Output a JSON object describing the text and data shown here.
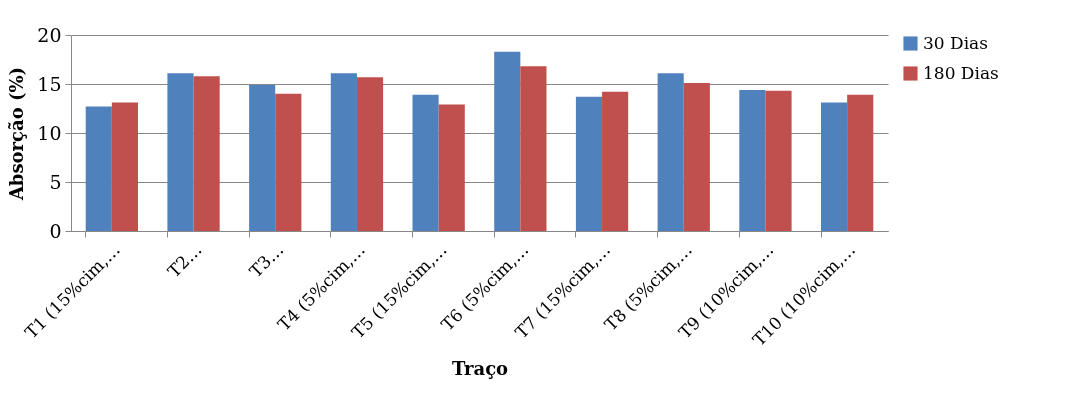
{
  "chart_data": {
    "type": "bar",
    "xlabel": "Traço",
    "ylabel": "Absorção (%)",
    "categories": [
      "T1 (15%cim,…",
      "T2…",
      "T3…",
      "T4 (5%cim,…",
      "T5 (15%cim,…",
      "T6 (5%cim,…",
      "T7 (15%cim,…",
      "T8 (5%cim,…",
      "T9 (10%cim,…",
      "T10 (10%cim,…"
    ],
    "series": [
      {
        "name": "30 Dias",
        "color": "#4f81bd",
        "values": [
          12.7,
          16.1,
          14.9,
          16.1,
          13.9,
          18.3,
          13.7,
          16.1,
          14.4,
          13.1
        ]
      },
      {
        "name": "180 Dias",
        "color": "#c0504d",
        "values": [
          13.1,
          15.8,
          14.0,
          15.7,
          12.9,
          16.8,
          14.2,
          15.1,
          14.3,
          13.9
        ]
      }
    ],
    "ylim": [
      0,
      20
    ],
    "yticks": [
      0,
      5,
      10,
      15,
      20
    ],
    "grid": "y",
    "legend": "right"
  }
}
